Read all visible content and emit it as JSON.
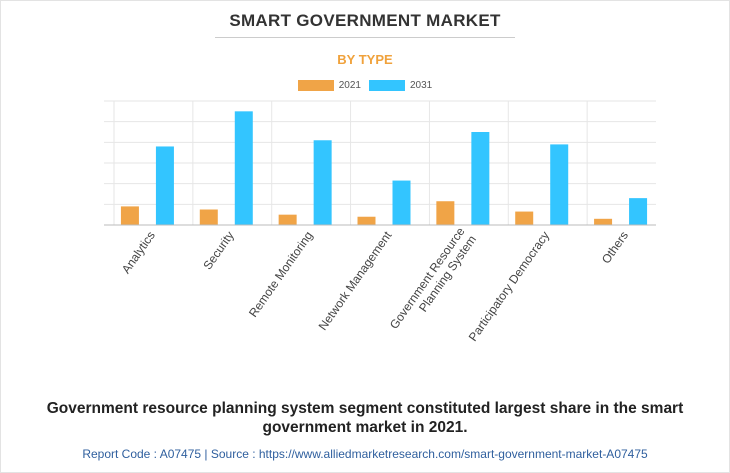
{
  "header": {
    "title": "SMART GOVERNMENT MARKET",
    "subtitle": "BY TYPE"
  },
  "chart_data": {
    "type": "bar",
    "categories": [
      [
        "Analytics"
      ],
      [
        "Security"
      ],
      [
        "Remote Monitoring"
      ],
      [
        "Network Management"
      ],
      [
        "Government Resource",
        "Planning System"
      ],
      [
        "Participatory Democracy"
      ],
      [
        "Others"
      ]
    ],
    "series": [
      {
        "name": "2021",
        "color": "#f0a447",
        "values": [
          9,
          7.5,
          5,
          4,
          11.5,
          6.5,
          3
        ]
      },
      {
        "name": "2031",
        "color": "#33c5ff",
        "values": [
          38,
          55,
          41,
          21.5,
          45,
          39,
          13
        ]
      }
    ],
    "ylim": [
      0,
      60
    ],
    "grid": true,
    "legend_position": "top-center"
  },
  "caption": "Government resource planning system segment constituted largest share in the smart government market in 2021.",
  "footer": "Report Code : A07475  |  Source : https://www.alliedmarketresearch.com/smart-government-market-A07475"
}
